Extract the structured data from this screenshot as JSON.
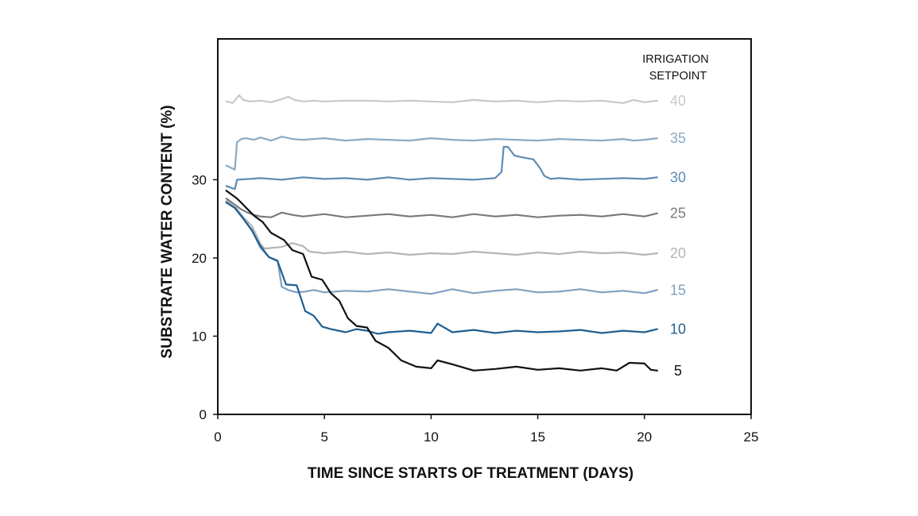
{
  "chart_data": {
    "type": "line",
    "xlabel": "TIME SINCE STARTS OF TREATMENT (DAYS)",
    "ylabel": "SUBSTRATE WATER CONTENT (%)",
    "xlim": [
      0,
      25
    ],
    "ylim": [
      0,
      48
    ],
    "xticks": [
      "0",
      "5",
      "10",
      "15",
      "20",
      "25"
    ],
    "yticks": [
      "0",
      "10",
      "20",
      "30"
    ],
    "grid": false,
    "legend_title": [
      "IRRIGATION",
      "SETPOINT"
    ],
    "legend_placement": "right (labels at line ends)",
    "series": [
      {
        "name": "40",
        "color": "#c8c8c8",
        "x": [
          0.4,
          0.7,
          1.0,
          1.2,
          1.5,
          2,
          2.5,
          3,
          3.3,
          3.6,
          4,
          4.5,
          5,
          6,
          7,
          8,
          9,
          10,
          11,
          12,
          13,
          14,
          15,
          16,
          17,
          18,
          19,
          19.5,
          20,
          20.6
        ],
        "y": [
          40,
          39.8,
          40.8,
          40.2,
          40,
          40.1,
          39.9,
          40.3,
          40.6,
          40.2,
          40,
          40.1,
          40,
          40.1,
          40.1,
          40,
          40.1,
          40,
          39.9,
          40.2,
          40,
          40.1,
          39.9,
          40.1,
          40,
          40.1,
          39.8,
          40.2,
          39.9,
          40.1
        ]
      },
      {
        "name": "35",
        "color": "#8aaac4",
        "x": [
          0.4,
          0.8,
          0.9,
          1.1,
          1.3,
          1.7,
          2,
          2.5,
          3,
          3.5,
          4,
          5,
          6,
          7,
          8,
          9,
          10,
          11,
          12,
          13,
          14,
          15,
          16,
          17,
          18,
          19,
          19.5,
          20,
          20.6
        ],
        "y": [
          31.8,
          31.3,
          34.8,
          35.2,
          35.3,
          35.1,
          35.4,
          35,
          35.5,
          35.2,
          35.1,
          35.3,
          35,
          35.2,
          35.1,
          35,
          35.3,
          35.1,
          35,
          35.2,
          35.1,
          35,
          35.2,
          35.1,
          35,
          35.2,
          35,
          35.1,
          35.3
        ]
      },
      {
        "name": "30",
        "color": "#5e8db5",
        "x": [
          0.4,
          0.8,
          0.9,
          1.5,
          2,
          3,
          4,
          5,
          6,
          7,
          8,
          9,
          10,
          11,
          12,
          13,
          13.3,
          13.4,
          13.6,
          13.9,
          14.2,
          14.8,
          15.1,
          15.3,
          15.6,
          16,
          17,
          18,
          19,
          20,
          20.6
        ],
        "y": [
          29.2,
          28.8,
          30,
          30.1,
          30.2,
          30,
          30.3,
          30.1,
          30.2,
          30,
          30.3,
          30,
          30.2,
          30.1,
          30,
          30.2,
          31,
          34.2,
          34.2,
          33.1,
          32.9,
          32.6,
          31.5,
          30.5,
          30.1,
          30.2,
          30,
          30.1,
          30.2,
          30.1,
          30.3
        ]
      },
      {
        "name": "25",
        "color": "#7a7a7a",
        "x": [
          0.4,
          0.8,
          1.1,
          1.4,
          1.7,
          2,
          2.5,
          3,
          3.5,
          4,
          5,
          6,
          7,
          8,
          9,
          10,
          11,
          12,
          13,
          14,
          15,
          16,
          17,
          18,
          19,
          20,
          20.6
        ],
        "y": [
          27.6,
          26.8,
          26.2,
          25.8,
          25.5,
          25.3,
          25.2,
          25.8,
          25.5,
          25.3,
          25.6,
          25.2,
          25.4,
          25.6,
          25.3,
          25.5,
          25.2,
          25.6,
          25.3,
          25.5,
          25.2,
          25.4,
          25.5,
          25.3,
          25.6,
          25.3,
          25.7
        ]
      },
      {
        "name": "20",
        "color": "#b5b5b5",
        "x": [
          0.4,
          0.8,
          1.2,
          1.6,
          2,
          2.2,
          2.6,
          3,
          3.5,
          4,
          4.3,
          5,
          6,
          7,
          8,
          9,
          10,
          11,
          12,
          13,
          14,
          15,
          16,
          17,
          18,
          19,
          20,
          20.6
        ],
        "y": [
          27.3,
          26.6,
          25.2,
          24.1,
          21.8,
          21.2,
          21.3,
          21.4,
          21.9,
          21.5,
          20.8,
          20.6,
          20.8,
          20.5,
          20.7,
          20.4,
          20.6,
          20.5,
          20.8,
          20.6,
          20.4,
          20.7,
          20.5,
          20.8,
          20.6,
          20.7,
          20.4,
          20.6
        ]
      },
      {
        "name": "15",
        "color": "#7fa1bf",
        "x": [
          0.4,
          0.8,
          1.2,
          1.6,
          2,
          2.4,
          2.8,
          3,
          3.3,
          3.7,
          4.1,
          4.5,
          5,
          6,
          7,
          8,
          9,
          10,
          11,
          12,
          13,
          14,
          15,
          16,
          17,
          18,
          19,
          20,
          20.6
        ],
        "y": [
          27.1,
          26.4,
          25,
          23.6,
          21.3,
          20.1,
          19.7,
          16.3,
          15.9,
          15.6,
          15.7,
          15.9,
          15.6,
          15.8,
          15.7,
          16,
          15.7,
          15.4,
          16,
          15.5,
          15.8,
          16,
          15.6,
          15.7,
          16,
          15.6,
          15.8,
          15.5,
          15.9
        ]
      },
      {
        "name": "10",
        "color": "#1f5f91",
        "x": [
          0.4,
          0.8,
          1.2,
          1.6,
          2,
          2.4,
          2.8,
          3.2,
          3.7,
          4.1,
          4.5,
          4.9,
          5.3,
          6,
          6.5,
          7,
          7.5,
          8,
          9,
          10,
          10.3,
          11,
          12,
          13,
          14,
          15,
          16,
          17,
          18,
          19,
          20,
          20.6
        ],
        "y": [
          27.1,
          26.4,
          25,
          23.5,
          21.5,
          20.1,
          19.6,
          16.6,
          16.5,
          13.2,
          12.6,
          11.2,
          10.9,
          10.5,
          10.9,
          10.7,
          10.3,
          10.5,
          10.7,
          10.4,
          11.6,
          10.5,
          10.8,
          10.4,
          10.7,
          10.5,
          10.6,
          10.8,
          10.4,
          10.7,
          10.5,
          10.9
        ]
      },
      {
        "name": "5",
        "color": "#111111",
        "x": [
          0.4,
          0.9,
          1.3,
          1.7,
          2.1,
          2.5,
          3.1,
          3.5,
          4,
          4.4,
          4.9,
          5.3,
          5.7,
          6.1,
          6.5,
          7,
          7.4,
          8,
          8.6,
          9.3,
          10,
          10.3,
          11,
          12,
          13,
          14,
          15,
          16,
          17,
          18,
          18.7,
          19.3,
          20,
          20.3,
          20.6
        ],
        "y": [
          28.6,
          27.6,
          26.5,
          25.4,
          24.6,
          23.2,
          22.3,
          21,
          20.5,
          17.6,
          17.2,
          15.5,
          14.5,
          12.3,
          11.3,
          11.1,
          9.4,
          8.5,
          6.9,
          6.1,
          5.9,
          6.9,
          6.4,
          5.6,
          5.8,
          6.1,
          5.7,
          5.9,
          5.6,
          5.9,
          5.6,
          6.6,
          6.5,
          5.7,
          5.6
        ]
      }
    ]
  }
}
